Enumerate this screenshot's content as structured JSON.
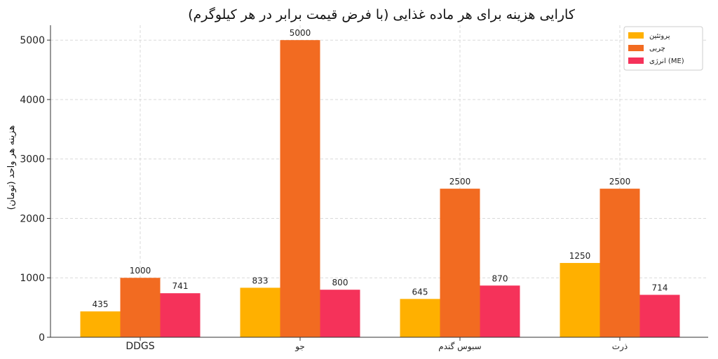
{
  "chart_data": {
    "type": "bar",
    "title": "کارایی هزینه برای هر ماده غذایی (با فرض قیمت برابر در هر کیلوگرم)",
    "xlabel": "",
    "ylabel": "هزینه هر واحد (تومان)",
    "categories": [
      "DDGS",
      "جو",
      "سبوس گندم",
      "ذرت"
    ],
    "series": [
      {
        "name": "پروتئین",
        "values": [
          435,
          833,
          645,
          1250
        ],
        "color": "#FFB000"
      },
      {
        "name": "چربی",
        "values": [
          1000,
          5000,
          2500,
          2500
        ],
        "color": "#F26B21"
      },
      {
        "name": "انرژی (ME)",
        "values": [
          741,
          800,
          870,
          714
        ],
        "color": "#F5325A"
      }
    ],
    "ylim": [
      0,
      5250
    ],
    "yticks": [
      0,
      1000,
      2000,
      3000,
      4000,
      5000
    ],
    "grid": true,
    "legend_position": "top-right"
  }
}
